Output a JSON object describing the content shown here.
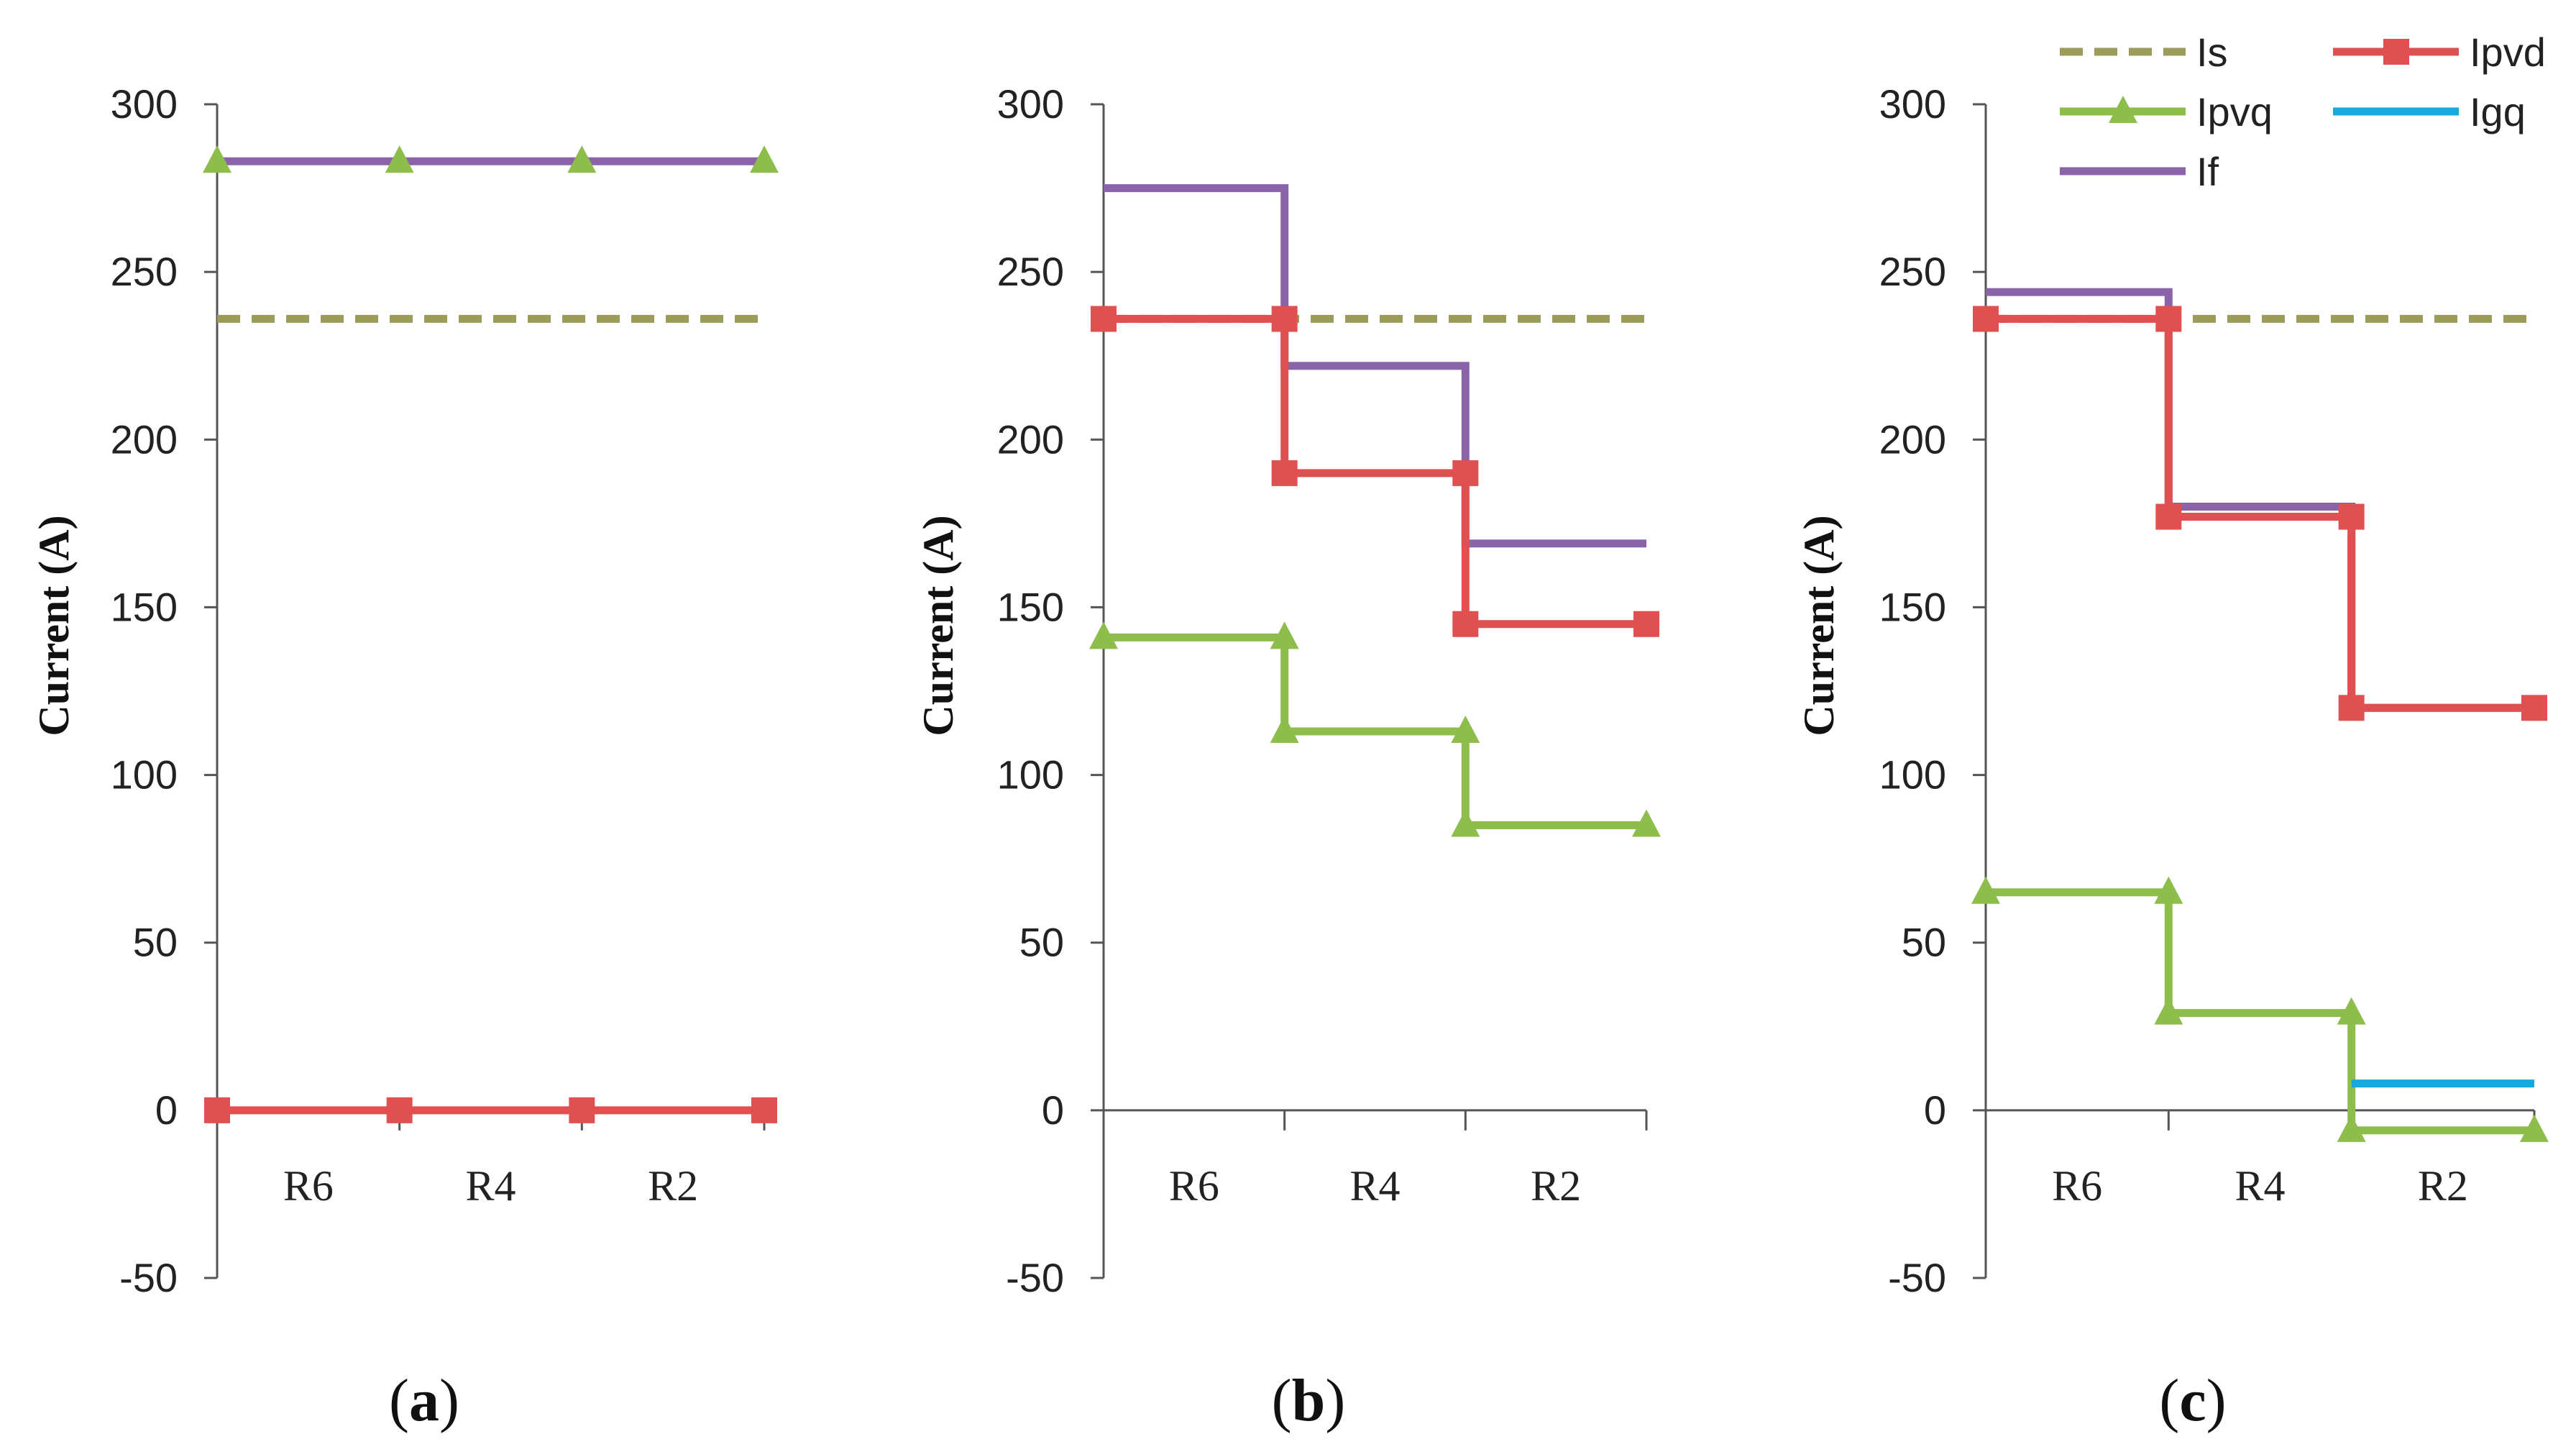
{
  "chart_data": [
    {
      "type": "line",
      "panel": "a",
      "ylabel": "Current (A)",
      "ylim": [
        -50,
        300
      ],
      "yticks": [
        "-50",
        "0",
        "50",
        "100",
        "150",
        "200",
        "250",
        "300"
      ],
      "categories": [
        "R6",
        "R4",
        "R2"
      ],
      "x_boundaries": [
        0,
        1,
        2,
        3
      ],
      "series": [
        {
          "name": "Is",
          "key": "Is",
          "style": "dashed",
          "color": "#9C9C5A",
          "points": [
            [
              0,
              236
            ],
            [
              3,
              236
            ]
          ],
          "markers": []
        },
        {
          "name": "Ipvd",
          "key": "Ipvd",
          "style": "solid",
          "color": "#E05050",
          "marker": "square",
          "points": [
            [
              0,
              0
            ],
            [
              3,
              0
            ]
          ],
          "markers": [
            [
              0,
              0
            ],
            [
              1,
              0
            ],
            [
              2,
              0
            ],
            [
              3,
              0
            ]
          ]
        },
        {
          "name": "If",
          "key": "If",
          "style": "solid",
          "color": "#8A63A8",
          "points": [
            [
              0,
              283
            ],
            [
              3,
              283
            ]
          ],
          "markers": []
        },
        {
          "name": "Ipvq",
          "key": "Ipvq",
          "style": "solid",
          "color": "#8DBE4B",
          "marker": "triangle",
          "points": [],
          "markers": [
            [
              0,
              283
            ],
            [
              1,
              283
            ],
            [
              2,
              283
            ],
            [
              3,
              283
            ]
          ]
        }
      ]
    },
    {
      "type": "line",
      "panel": "b",
      "ylabel": "Current (A)",
      "ylim": [
        -50,
        300
      ],
      "yticks": [
        "-50",
        "0",
        "50",
        "100",
        "150",
        "200",
        "250",
        "300"
      ],
      "categories": [
        "R6",
        "R4",
        "R2"
      ],
      "x_boundaries": [
        0,
        1,
        2,
        3
      ],
      "series": [
        {
          "name": "Is",
          "key": "Is",
          "style": "dashed",
          "color": "#9C9C5A",
          "points": [
            [
              0,
              236
            ],
            [
              3,
              236
            ]
          ],
          "markers": []
        },
        {
          "name": "If",
          "key": "If",
          "style": "solid",
          "color": "#8A63A8",
          "points": [
            [
              0,
              275
            ],
            [
              1,
              275
            ],
            [
              1,
              222
            ],
            [
              2,
              222
            ],
            [
              2,
              169
            ],
            [
              3,
              169
            ]
          ],
          "markers": []
        },
        {
          "name": "Ipvd",
          "key": "Ipvd",
          "style": "solid",
          "color": "#E05050",
          "marker": "square",
          "points": [
            [
              0,
              236
            ],
            [
              1,
              236
            ],
            [
              1,
              190
            ],
            [
              2,
              190
            ],
            [
              2,
              145
            ],
            [
              3,
              145
            ]
          ],
          "markers": [
            [
              0,
              236
            ],
            [
              1,
              236
            ],
            [
              1,
              190
            ],
            [
              2,
              190
            ],
            [
              2,
              145
            ],
            [
              3,
              145
            ]
          ]
        },
        {
          "name": "Ipvq",
          "key": "Ipvq",
          "style": "solid",
          "color": "#8DBE4B",
          "marker": "triangle",
          "points": [
            [
              0,
              141
            ],
            [
              1,
              141
            ],
            [
              1,
              113
            ],
            [
              2,
              113
            ],
            [
              2,
              85
            ],
            [
              3,
              85
            ]
          ],
          "markers": [
            [
              0,
              141
            ],
            [
              1,
              141
            ],
            [
              1,
              113
            ],
            [
              2,
              113
            ],
            [
              2,
              85
            ],
            [
              3,
              85
            ]
          ]
        }
      ]
    },
    {
      "type": "line",
      "panel": "c",
      "ylabel": "Current (A)",
      "ylim": [
        -50,
        300
      ],
      "yticks": [
        "-50",
        "0",
        "50",
        "100",
        "150",
        "200",
        "250",
        "300"
      ],
      "categories": [
        "R6",
        "R4",
        "R2"
      ],
      "x_boundaries": [
        0,
        1,
        2,
        3
      ],
      "series": [
        {
          "name": "Is",
          "key": "Is",
          "style": "dashed",
          "color": "#9C9C5A",
          "points": [
            [
              0,
              236
            ],
            [
              3,
              236
            ]
          ],
          "markers": []
        },
        {
          "name": "If",
          "key": "If",
          "style": "solid",
          "color": "#8A63A8",
          "points": [
            [
              0,
              244
            ],
            [
              1,
              244
            ],
            [
              1,
              180
            ],
            [
              2,
              180
            ],
            [
              2,
              120
            ],
            [
              3,
              120
            ]
          ],
          "markers": []
        },
        {
          "name": "Ipvd",
          "key": "Ipvd",
          "style": "solid",
          "color": "#E05050",
          "marker": "square",
          "points": [
            [
              0,
              236
            ],
            [
              1,
              236
            ],
            [
              1,
              177
            ],
            [
              2,
              177
            ],
            [
              2,
              120
            ],
            [
              3,
              120
            ]
          ],
          "markers": [
            [
              0,
              236
            ],
            [
              1,
              236
            ],
            [
              1,
              177
            ],
            [
              2,
              177
            ],
            [
              2,
              120
            ],
            [
              3,
              120
            ]
          ]
        },
        {
          "name": "Ipvq",
          "key": "Ipvq",
          "style": "solid",
          "color": "#8DBE4B",
          "marker": "triangle",
          "points": [
            [
              0,
              65
            ],
            [
              1,
              65
            ],
            [
              1,
              29
            ],
            [
              2,
              29
            ],
            [
              2,
              -6
            ],
            [
              3,
              -6
            ]
          ],
          "markers": [
            [
              0,
              65
            ],
            [
              1,
              65
            ],
            [
              1,
              29
            ],
            [
              2,
              29
            ],
            [
              2,
              -6
            ],
            [
              3,
              -6
            ]
          ]
        },
        {
          "name": "Igq",
          "key": "Igq",
          "style": "solid",
          "color": "#18A8DC",
          "points": [
            [
              2,
              8
            ],
            [
              3,
              8
            ]
          ],
          "markers": []
        }
      ]
    }
  ],
  "legend": [
    {
      "label": "Is",
      "key": "Is",
      "color": "#9C9C5A",
      "style": "dashed",
      "marker": "none"
    },
    {
      "label": "Ipvd",
      "key": "Ipvd",
      "color": "#E05050",
      "style": "solid",
      "marker": "square"
    },
    {
      "label": "Ipvq",
      "key": "Ipvq",
      "color": "#8DBE4B",
      "style": "solid",
      "marker": "triangle"
    },
    {
      "label": "Igq",
      "key": "Igq",
      "color": "#18A8DC",
      "style": "solid",
      "marker": "none"
    },
    {
      "label": "If",
      "key": "If",
      "color": "#8A63A8",
      "style": "solid",
      "marker": "none"
    }
  ],
  "panel_labels": [
    "a",
    "b",
    "c"
  ],
  "paren_open": "(",
  "paren_close": ")"
}
